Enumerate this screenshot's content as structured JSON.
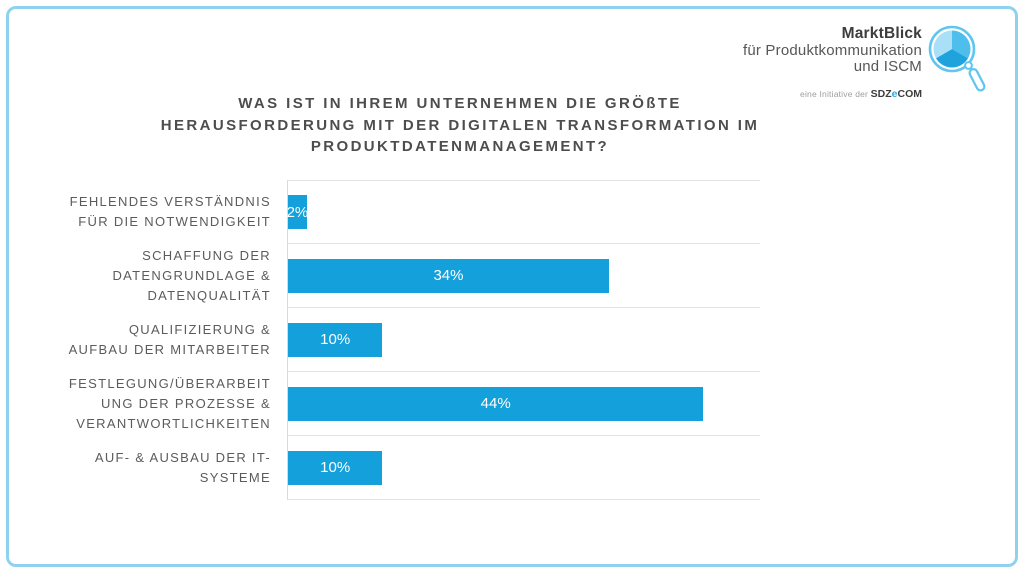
{
  "page": {
    "background": "#FFFFFF",
    "border_color": "#8FD2F0"
  },
  "logo": {
    "brand": "MarktBlick",
    "line2": "für Produktkommunikation",
    "line3": "und ISCM",
    "initiative_prefix": "eine Initiative der",
    "initiative_brand_parts": [
      "SDZ",
      "e",
      "COM"
    ],
    "accent_blue": "#29ABE2",
    "icon_colors": {
      "ring": "#5FC6F0",
      "wedge_top_right": "#4FBEEC",
      "wedge_left": "#A9DFF7",
      "wedge_bottom": "#1FA3DC"
    }
  },
  "title": {
    "text": "WAS IST IN IHREM UNTERNEHMEN DIE GRÖßTE HERAUSFORDERUNG MIT DER DIGITALEN TRANSFORMATION IM PRODUKTDATENMANAGEMENT?",
    "lines": [
      "WAS IST IN IHREM UNTERNEHMEN DIE GRÖßTE",
      "HERAUSFORDERUNG MIT DER DIGITALEN TRANSFORMATION IM",
      "PRODUKTDATENMANAGEMENT?"
    ]
  },
  "chart_data": {
    "type": "bar",
    "orientation": "horizontal",
    "title": "WAS IST IN IHREM UNTERNEHMEN DIE GRÖßTE HERAUSFORDERUNG MIT DER DIGITALEN TRANSFORMATION IM PRODUKTDATENMANAGEMENT?",
    "categories": [
      "FEHLENDES VERSTÄNDNIS FÜR DIE NOTWENDIGKEIT",
      "SCHAFFUNG DER DATENGRUNDLAGE & DATENQUALITÄT",
      "QUALIFIZIERUNG & AUFBAU DER MITARBEITER",
      "FESTLEGUNG/ÜBERARBEITUNG DER PROZESSE & VERANTWORTLICHKEITEN",
      "AUF- & AUSBAU DER IT-SYSTEME"
    ],
    "values": [
      2,
      34,
      10,
      44,
      10
    ],
    "value_labels": [
      "2%",
      "34%",
      "10%",
      "44%",
      "10%"
    ],
    "xlim": [
      0,
      50
    ],
    "grid": "horizontal category dividers, light gray; no x-axis ticks",
    "legend": "none",
    "bar_color": "#14A0DB",
    "value_label_color": "#FFFFFF",
    "rows": [
      {
        "label_lines": [
          "FEHLENDES VERSTÄNDNIS",
          "FÜR DIE NOTWENDIGKEIT"
        ],
        "value": 2,
        "value_label": "2%"
      },
      {
        "label_lines": [
          "SCHAFFUNG DER",
          "DATENGRUNDLAGE &",
          "DATENQUALITÄT"
        ],
        "value": 34,
        "value_label": "34%"
      },
      {
        "label_lines": [
          "QUALIFIZIERUNG &",
          "AUFBAU DER MITARBEITER"
        ],
        "value": 10,
        "value_label": "10%"
      },
      {
        "label_lines": [
          "FESTLEGUNG/ÜBERARBEIT",
          "UNG DER PROZESSE &",
          "VERANTWORTLICHKEITEN"
        ],
        "value": 44,
        "value_label": "44%"
      },
      {
        "label_lines": [
          "AUF- & AUSBAU DER IT-",
          "SYSTEME"
        ],
        "value": 10,
        "value_label": "10%"
      }
    ]
  }
}
